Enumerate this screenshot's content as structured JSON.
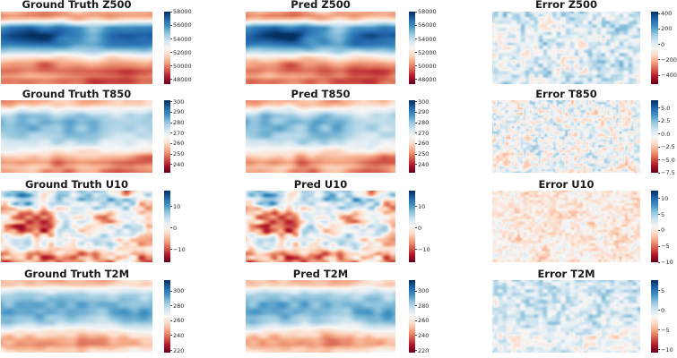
{
  "page": {
    "background": "#ffffff"
  },
  "colormap": {
    "name": "RdBu",
    "stops": [
      "#67001f",
      "#b2182b",
      "#d6604d",
      "#f4a582",
      "#fddbc7",
      "#f7f7f7",
      "#d1e5f0",
      "#92c5de",
      "#4393c3",
      "#2166ac",
      "#053061"
    ]
  },
  "chart_data": {
    "type": "heatmap",
    "grid": {
      "rows": 4,
      "cols": 3
    },
    "row_variables": [
      "Z500",
      "T850",
      "U10",
      "T2M"
    ],
    "col_kinds": [
      "Ground Truth",
      "Pred",
      "Error"
    ],
    "legend_position": "right-of-each-panel",
    "axes": "hidden (lat-lon world maps, no tick labels on maps)",
    "panels": [
      {
        "title": "Ground Truth Z500",
        "row": 0,
        "col": 0,
        "vmin": 47300,
        "vmax": 58050,
        "ticks": [
          {
            "v": 58000,
            "label": "58000"
          },
          {
            "v": 56000,
            "label": "56000"
          },
          {
            "v": 54000,
            "label": "54000"
          },
          {
            "v": 52000,
            "label": "52000"
          },
          {
            "v": 50000,
            "label": "50000"
          },
          {
            "v": 48000,
            "label": "48000"
          }
        ],
        "field": {
          "seed": 3,
          "xstretch": 0.55,
          "profile": [
            [
              0.0,
              0.34
            ],
            [
              0.05,
              0.3
            ],
            [
              0.1,
              0.38
            ],
            [
              0.16,
              0.62
            ],
            [
              0.22,
              0.82
            ],
            [
              0.32,
              0.88
            ],
            [
              0.45,
              0.84
            ],
            [
              0.55,
              0.7
            ],
            [
              0.63,
              0.5
            ],
            [
              0.72,
              0.34
            ],
            [
              0.82,
              0.26
            ],
            [
              0.9,
              0.32
            ],
            [
              0.96,
              0.28
            ],
            [
              1.0,
              0.3
            ]
          ],
          "octaves": [
            {
              "amp": 0.12,
              "scale": 26
            },
            {
              "amp": 0.06,
              "scale": 10
            }
          ]
        }
      },
      {
        "title": "Pred Z500",
        "row": 0,
        "col": 1,
        "vmin": 47300,
        "vmax": 58050,
        "ticks": [
          {
            "v": 58000,
            "label": "58000"
          },
          {
            "v": 56000,
            "label": "56000"
          },
          {
            "v": 54000,
            "label": "54000"
          },
          {
            "v": 52000,
            "label": "52000"
          },
          {
            "v": 50000,
            "label": "50000"
          },
          {
            "v": 48000,
            "label": "48000"
          }
        ],
        "field": {
          "seed": 3,
          "xstretch": 0.55,
          "profile": [
            [
              0.0,
              0.34
            ],
            [
              0.05,
              0.3
            ],
            [
              0.1,
              0.38
            ],
            [
              0.16,
              0.62
            ],
            [
              0.22,
              0.82
            ],
            [
              0.32,
              0.88
            ],
            [
              0.45,
              0.84
            ],
            [
              0.55,
              0.7
            ],
            [
              0.63,
              0.5
            ],
            [
              0.72,
              0.34
            ],
            [
              0.82,
              0.26
            ],
            [
              0.9,
              0.32
            ],
            [
              0.96,
              0.28
            ],
            [
              1.0,
              0.3
            ]
          ],
          "octaves": [
            {
              "amp": 0.12,
              "scale": 26
            },
            {
              "amp": 0.06,
              "scale": 10
            },
            {
              "amp": 0.04,
              "scale": 9,
              "seed": 77
            }
          ]
        }
      },
      {
        "title": "Error Z500",
        "row": 0,
        "col": 2,
        "vmin": -515,
        "vmax": 425,
        "ticks": [
          {
            "v": 400,
            "label": "400"
          },
          {
            "v": 200,
            "label": "200"
          },
          {
            "v": 0,
            "label": "0"
          },
          {
            "v": -200,
            "label": "−200"
          },
          {
            "v": -400,
            "label": "−400"
          }
        ],
        "field": {
          "seed": 21,
          "xstretch": 0.8,
          "profile": [
            [
              0.0,
              0.57
            ],
            [
              1.0,
              0.57
            ]
          ],
          "octaves": [
            {
              "amp": 0.09,
              "scale": 16
            },
            {
              "amp": 0.13,
              "scale": 4
            }
          ]
        }
      },
      {
        "title": "Ground Truth T850",
        "row": 1,
        "col": 0,
        "vmin": 232,
        "vmax": 301.5,
        "ticks": [
          {
            "v": 300,
            "label": "300"
          },
          {
            "v": 290,
            "label": "290"
          },
          {
            "v": 280,
            "label": "280"
          },
          {
            "v": 270,
            "label": "270"
          },
          {
            "v": 260,
            "label": "260"
          },
          {
            "v": 250,
            "label": "250"
          },
          {
            "v": 240,
            "label": "240"
          }
        ],
        "field": {
          "seed": 5,
          "xstretch": 0.6,
          "profile": [
            [
              0.0,
              0.34
            ],
            [
              0.06,
              0.37
            ],
            [
              0.12,
              0.5
            ],
            [
              0.2,
              0.64
            ],
            [
              0.3,
              0.7
            ],
            [
              0.42,
              0.72
            ],
            [
              0.52,
              0.68
            ],
            [
              0.62,
              0.56
            ],
            [
              0.7,
              0.44
            ],
            [
              0.78,
              0.3
            ],
            [
              0.86,
              0.22
            ],
            [
              0.93,
              0.3
            ],
            [
              1.0,
              0.26
            ]
          ],
          "octaves": [
            {
              "amp": 0.09,
              "scale": 20
            },
            {
              "amp": 0.06,
              "scale": 8
            }
          ]
        }
      },
      {
        "title": "Pred T850",
        "row": 1,
        "col": 1,
        "vmin": 232,
        "vmax": 301.5,
        "ticks": [
          {
            "v": 300,
            "label": "300"
          },
          {
            "v": 290,
            "label": "290"
          },
          {
            "v": 280,
            "label": "280"
          },
          {
            "v": 270,
            "label": "270"
          },
          {
            "v": 260,
            "label": "260"
          },
          {
            "v": 250,
            "label": "250"
          },
          {
            "v": 240,
            "label": "240"
          }
        ],
        "field": {
          "seed": 5,
          "xstretch": 0.6,
          "profile": [
            [
              0.0,
              0.34
            ],
            [
              0.06,
              0.37
            ],
            [
              0.12,
              0.5
            ],
            [
              0.2,
              0.64
            ],
            [
              0.3,
              0.7
            ],
            [
              0.42,
              0.72
            ],
            [
              0.52,
              0.68
            ],
            [
              0.62,
              0.56
            ],
            [
              0.7,
              0.44
            ],
            [
              0.78,
              0.3
            ],
            [
              0.86,
              0.22
            ],
            [
              0.93,
              0.3
            ],
            [
              1.0,
              0.26
            ]
          ],
          "octaves": [
            {
              "amp": 0.09,
              "scale": 20
            },
            {
              "amp": 0.06,
              "scale": 8
            },
            {
              "amp": 0.04,
              "scale": 8,
              "seed": 79
            }
          ]
        }
      },
      {
        "title": "Error T850",
        "row": 1,
        "col": 2,
        "vmin": -7.5,
        "vmax": 6.5,
        "ticks": [
          {
            "v": 5,
            "label": "5.0"
          },
          {
            "v": 2.5,
            "label": "2.5"
          },
          {
            "v": 0,
            "label": "0.0"
          },
          {
            "v": -2.5,
            "label": "−2.5"
          },
          {
            "v": -5,
            "label": "−5.0"
          },
          {
            "v": -7.5,
            "label": "−7.5"
          }
        ],
        "field": {
          "seed": 23,
          "xstretch": 0.9,
          "profile": [
            [
              0.0,
              0.52
            ],
            [
              1.0,
              0.52
            ]
          ],
          "octaves": [
            {
              "amp": 0.07,
              "scale": 9
            },
            {
              "amp": 0.15,
              "scale": 3
            }
          ]
        }
      },
      {
        "title": "Ground Truth U10",
        "row": 2,
        "col": 0,
        "vmin": -16,
        "vmax": 17.5,
        "ticks": [
          {
            "v": 10,
            "label": "10"
          },
          {
            "v": 0,
            "label": "0"
          },
          {
            "v": -10,
            "label": "−10"
          }
        ],
        "field": {
          "seed": 7,
          "xstretch": 0.6,
          "profile": [
            [
              0.0,
              0.4
            ],
            [
              0.06,
              0.52
            ],
            [
              0.12,
              0.6
            ],
            [
              0.2,
              0.52
            ],
            [
              0.28,
              0.42
            ],
            [
              0.38,
              0.36
            ],
            [
              0.5,
              0.35
            ],
            [
              0.58,
              0.4
            ],
            [
              0.66,
              0.48
            ],
            [
              0.74,
              0.52
            ],
            [
              0.82,
              0.55
            ],
            [
              0.9,
              0.42
            ],
            [
              1.0,
              0.38
            ]
          ],
          "octaves": [
            {
              "amp": 0.24,
              "scale": 14
            },
            {
              "amp": 0.15,
              "scale": 5
            }
          ]
        }
      },
      {
        "title": "Pred U10",
        "row": 2,
        "col": 1,
        "vmin": -16,
        "vmax": 17.5,
        "ticks": [
          {
            "v": 10,
            "label": "10"
          },
          {
            "v": 0,
            "label": "0"
          },
          {
            "v": -10,
            "label": "−10"
          }
        ],
        "field": {
          "seed": 7,
          "xstretch": 0.6,
          "profile": [
            [
              0.0,
              0.4
            ],
            [
              0.06,
              0.52
            ],
            [
              0.12,
              0.6
            ],
            [
              0.2,
              0.52
            ],
            [
              0.28,
              0.42
            ],
            [
              0.38,
              0.36
            ],
            [
              0.5,
              0.35
            ],
            [
              0.58,
              0.4
            ],
            [
              0.66,
              0.48
            ],
            [
              0.74,
              0.52
            ],
            [
              0.82,
              0.55
            ],
            [
              0.9,
              0.42
            ],
            [
              1.0,
              0.38
            ]
          ],
          "octaves": [
            {
              "amp": 0.24,
              "scale": 14
            },
            {
              "amp": 0.15,
              "scale": 5
            },
            {
              "amp": 0.07,
              "scale": 6,
              "seed": 81
            }
          ]
        }
      },
      {
        "title": "Error U10",
        "row": 2,
        "col": 2,
        "vmin": -10,
        "vmax": 12.5,
        "ticks": [
          {
            "v": 10,
            "label": "10"
          },
          {
            "v": 5,
            "label": "5"
          },
          {
            "v": 0,
            "label": "0"
          },
          {
            "v": -5,
            "label": "−5"
          },
          {
            "v": -10,
            "label": "−10"
          }
        ],
        "field": {
          "seed": 25,
          "xstretch": 0.9,
          "profile": [
            [
              0.0,
              0.45
            ],
            [
              1.0,
              0.45
            ]
          ],
          "octaves": [
            {
              "amp": 0.06,
              "scale": 9
            },
            {
              "amp": 0.09,
              "scale": 3
            }
          ]
        }
      },
      {
        "title": "Ground Truth T2M",
        "row": 3,
        "col": 0,
        "vmin": 217,
        "vmax": 315,
        "ticks": [
          {
            "v": 300,
            "label": "300"
          },
          {
            "v": 280,
            "label": "280"
          },
          {
            "v": 260,
            "label": "260"
          },
          {
            "v": 240,
            "label": "240"
          },
          {
            "v": 220,
            "label": "220"
          }
        ],
        "field": {
          "seed": 9,
          "xstretch": 0.6,
          "profile": [
            [
              0.0,
              0.35
            ],
            [
              0.06,
              0.37
            ],
            [
              0.12,
              0.52
            ],
            [
              0.2,
              0.66
            ],
            [
              0.32,
              0.74
            ],
            [
              0.46,
              0.76
            ],
            [
              0.58,
              0.68
            ],
            [
              0.66,
              0.55
            ],
            [
              0.74,
              0.42
            ],
            [
              0.82,
              0.32
            ],
            [
              0.9,
              0.3
            ],
            [
              0.96,
              0.38
            ],
            [
              1.0,
              0.42
            ]
          ],
          "octaves": [
            {
              "amp": 0.06,
              "scale": 22
            },
            {
              "amp": 0.05,
              "scale": 7
            }
          ]
        }
      },
      {
        "title": "Pred T2M",
        "row": 3,
        "col": 1,
        "vmin": 217,
        "vmax": 315,
        "ticks": [
          {
            "v": 300,
            "label": "300"
          },
          {
            "v": 280,
            "label": "280"
          },
          {
            "v": 260,
            "label": "260"
          },
          {
            "v": 240,
            "label": "240"
          },
          {
            "v": 220,
            "label": "220"
          }
        ],
        "field": {
          "seed": 9,
          "xstretch": 0.6,
          "profile": [
            [
              0.0,
              0.35
            ],
            [
              0.06,
              0.37
            ],
            [
              0.12,
              0.52
            ],
            [
              0.2,
              0.66
            ],
            [
              0.32,
              0.74
            ],
            [
              0.46,
              0.76
            ],
            [
              0.58,
              0.68
            ],
            [
              0.66,
              0.55
            ],
            [
              0.74,
              0.42
            ],
            [
              0.82,
              0.32
            ],
            [
              0.9,
              0.3
            ],
            [
              0.96,
              0.38
            ],
            [
              1.0,
              0.42
            ]
          ],
          "octaves": [
            {
              "amp": 0.06,
              "scale": 22
            },
            {
              "amp": 0.05,
              "scale": 7
            },
            {
              "amp": 0.03,
              "scale": 7,
              "seed": 83
            }
          ]
        }
      },
      {
        "title": "Error T2M",
        "row": 3,
        "col": 2,
        "vmin": -10.7,
        "vmax": 7.6,
        "ticks": [
          {
            "v": 5,
            "label": "5"
          },
          {
            "v": 0,
            "label": "0"
          },
          {
            "v": -5,
            "label": "−5"
          },
          {
            "v": -10,
            "label": "−10"
          }
        ],
        "field": {
          "seed": 27,
          "xstretch": 0.8,
          "profile": [
            [
              0.0,
              0.6
            ],
            [
              0.55,
              0.58
            ],
            [
              0.7,
              0.55
            ],
            [
              0.78,
              0.48
            ],
            [
              0.86,
              0.52
            ],
            [
              0.93,
              0.5
            ],
            [
              1.0,
              0.56
            ]
          ],
          "octaves": [
            {
              "amp": 0.07,
              "scale": 11
            },
            {
              "amp": 0.11,
              "scale": 4
            }
          ]
        }
      }
    ]
  }
}
